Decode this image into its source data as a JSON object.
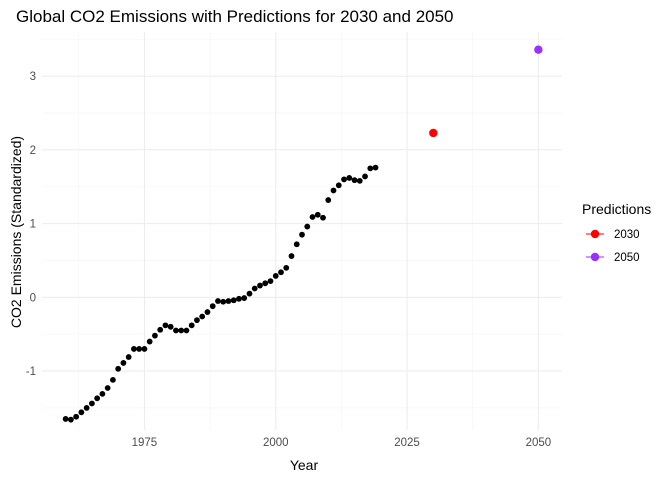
{
  "chart_data": {
    "type": "scatter",
    "title": "Global CO2 Emissions with Predictions for 2030 and 2050",
    "xlabel": "Year",
    "ylabel": "CO2 Emissions (Standardized)",
    "xlim": [
      1955.5,
      2054.5
    ],
    "ylim": [
      -1.8,
      3.6
    ],
    "x_ticks": [
      1975,
      2000,
      2025,
      2050
    ],
    "y_ticks": [
      -1,
      0,
      1,
      2,
      3
    ],
    "grid": true,
    "legend_position": "right",
    "series": [
      {
        "color": "#000000",
        "points": [
          [
            1960,
            -1.65
          ],
          [
            1961,
            -1.66
          ],
          [
            1962,
            -1.62
          ],
          [
            1963,
            -1.56
          ],
          [
            1964,
            -1.5
          ],
          [
            1965,
            -1.44
          ],
          [
            1966,
            -1.37
          ],
          [
            1967,
            -1.31
          ],
          [
            1968,
            -1.23
          ],
          [
            1969,
            -1.12
          ],
          [
            1970,
            -0.97
          ],
          [
            1971,
            -0.89
          ],
          [
            1972,
            -0.81
          ],
          [
            1973,
            -0.7
          ],
          [
            1974,
            -0.7
          ],
          [
            1975,
            -0.7
          ],
          [
            1976,
            -0.6
          ],
          [
            1977,
            -0.52
          ],
          [
            1978,
            -0.44
          ],
          [
            1979,
            -0.38
          ],
          [
            1980,
            -0.4
          ],
          [
            1981,
            -0.45
          ],
          [
            1982,
            -0.45
          ],
          [
            1983,
            -0.45
          ],
          [
            1984,
            -0.38
          ],
          [
            1985,
            -0.31
          ],
          [
            1986,
            -0.26
          ],
          [
            1987,
            -0.2
          ],
          [
            1988,
            -0.12
          ],
          [
            1989,
            -0.05
          ],
          [
            1990,
            -0.06
          ],
          [
            1991,
            -0.05
          ],
          [
            1992,
            -0.04
          ],
          [
            1993,
            -0.02
          ],
          [
            1994,
            -0.01
          ],
          [
            1995,
            0.05
          ],
          [
            1996,
            0.12
          ],
          [
            1997,
            0.16
          ],
          [
            1998,
            0.19
          ],
          [
            1999,
            0.22
          ],
          [
            2000,
            0.29
          ],
          [
            2001,
            0.34
          ],
          [
            2002,
            0.4
          ],
          [
            2003,
            0.56
          ],
          [
            2004,
            0.72
          ],
          [
            2005,
            0.85
          ],
          [
            2006,
            0.96
          ],
          [
            2007,
            1.09
          ],
          [
            2008,
            1.12
          ],
          [
            2009,
            1.08
          ],
          [
            2010,
            1.32
          ],
          [
            2011,
            1.45
          ],
          [
            2012,
            1.52
          ],
          [
            2013,
            1.6
          ],
          [
            2014,
            1.62
          ],
          [
            2015,
            1.59
          ],
          [
            2016,
            1.58
          ],
          [
            2017,
            1.64
          ],
          [
            2018,
            1.75
          ],
          [
            2019,
            1.76
          ]
        ]
      },
      {
        "name": "2030",
        "color": "#ff0000",
        "points": [
          [
            2030,
            2.23
          ]
        ]
      },
      {
        "name": "2050",
        "color": "#9b30ff",
        "points": [
          [
            2050,
            3.36
          ]
        ]
      }
    ],
    "legend": {
      "title": "Predictions",
      "entries": [
        {
          "label": "2030",
          "color": "#ff0000"
        },
        {
          "label": "2050",
          "color": "#9b30ff"
        }
      ]
    }
  }
}
